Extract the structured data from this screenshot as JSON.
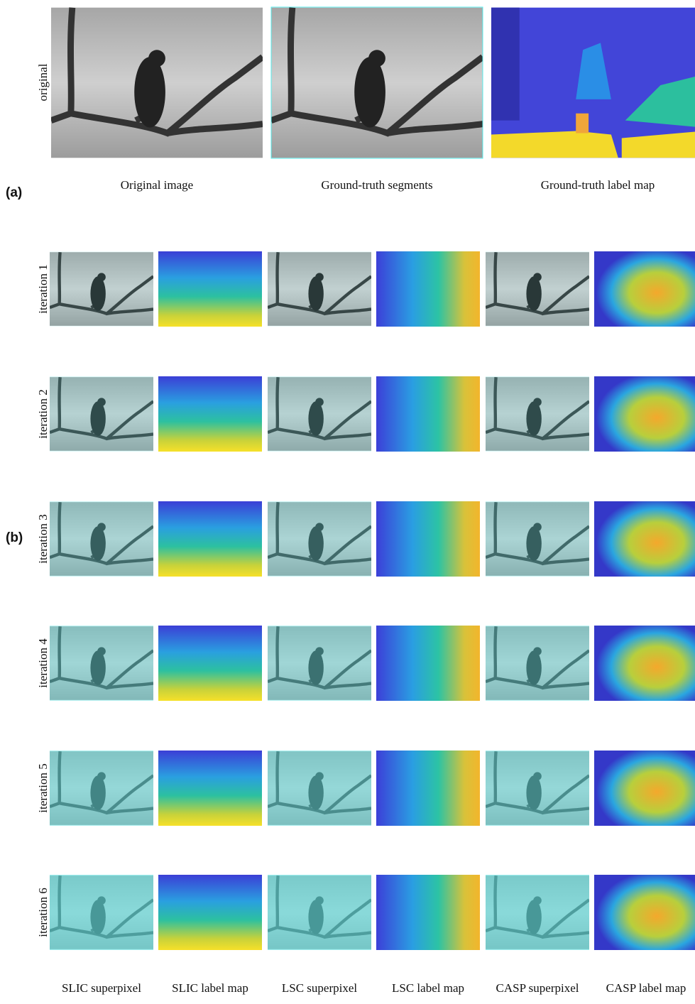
{
  "panel_a": {
    "label": "(a)",
    "row_label": "original",
    "captions": [
      "Original image",
      "Ground-truth segments",
      "Ground-truth label map"
    ]
  },
  "panel_b": {
    "label": "(b)",
    "row_labels": [
      "iteration 1",
      "iteration 2",
      "iteration 3",
      "iteration 4",
      "iteration 5",
      "iteration 6"
    ],
    "captions": [
      "SLIC superpixel",
      "SLIC label map",
      "LSC superpixel",
      "LSC label map",
      "CASP superpixel",
      "CASP label map"
    ]
  }
}
